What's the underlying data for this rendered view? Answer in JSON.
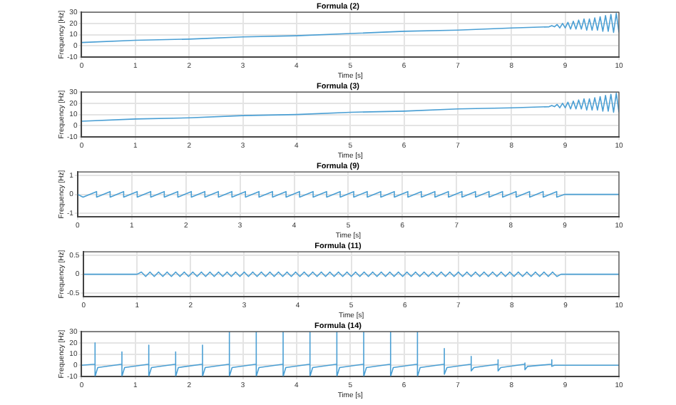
{
  "chart_data": [
    {
      "type": "line",
      "title": "Formula (2)",
      "xlabel": "Time [s]",
      "ylabel": "Frequency [Hz]",
      "xlim": [
        0,
        10
      ],
      "xticks": [
        0,
        1,
        2,
        3,
        4,
        5,
        6,
        7,
        8,
        9,
        10
      ],
      "ylim": [
        -10,
        30
      ],
      "yticks": [
        -10,
        0,
        10,
        20,
        30
      ],
      "grid": true,
      "x": [
        0,
        1,
        2,
        3,
        4,
        5,
        6,
        7,
        8,
        8.7,
        8.75,
        8.8,
        8.85,
        8.9,
        8.95,
        9,
        9.05,
        9.1,
        9.15,
        9.2,
        9.25,
        9.3,
        9.35,
        9.4,
        9.45,
        9.5,
        9.55,
        9.6,
        9.65,
        9.7,
        9.75,
        9.8,
        9.85,
        9.9,
        9.95,
        10
      ],
      "series": [
        {
          "color": "#4a9fd4",
          "values": [
            3,
            5,
            6,
            8,
            9,
            11,
            13,
            14,
            16,
            17,
            18,
            17,
            19,
            16,
            20,
            16,
            21,
            15,
            22,
            15,
            23,
            15,
            24,
            14,
            24,
            14,
            25,
            14,
            26,
            13,
            27,
            13,
            28,
            12,
            29,
            12
          ]
        }
      ]
    },
    {
      "type": "line",
      "title": "Formula (3)",
      "xlabel": "Time [s]",
      "ylabel": "Frequency [Hz]",
      "xlim": [
        0,
        10
      ],
      "xticks": [
        0,
        1,
        2,
        3,
        4,
        5,
        6,
        7,
        8,
        9,
        10
      ],
      "ylim": [
        -10,
        30
      ],
      "yticks": [
        -10,
        0,
        10,
        20,
        30
      ],
      "grid": true,
      "x": [
        0,
        1,
        2,
        3,
        4,
        5,
        6,
        7,
        8,
        8.7,
        8.75,
        8.8,
        8.85,
        8.9,
        8.95,
        9,
        9.05,
        9.1,
        9.15,
        9.2,
        9.25,
        9.3,
        9.35,
        9.4,
        9.45,
        9.5,
        9.55,
        9.6,
        9.65,
        9.7,
        9.75,
        9.8,
        9.85,
        9.9,
        9.95,
        10
      ],
      "series": [
        {
          "color": "#4a9fd4",
          "values": [
            4,
            6,
            7,
            9,
            10,
            12,
            13,
            15,
            16,
            17,
            18,
            17,
            19,
            16,
            20,
            16,
            21,
            15,
            22,
            15,
            23,
            15,
            24,
            14,
            24,
            14,
            25,
            14,
            26,
            13,
            27,
            13,
            28,
            12,
            29,
            12
          ]
        }
      ]
    },
    {
      "type": "line",
      "title": "Formula (9)",
      "xlabel": "Time [s]",
      "ylabel": "Frequency [Hz]",
      "xlim": [
        0,
        10
      ],
      "xticks": [
        0,
        1,
        2,
        3,
        4,
        5,
        6,
        7,
        8,
        9,
        10
      ],
      "ylim": [
        -1.2,
        1.2
      ],
      "yticks": [
        -1,
        0,
        1
      ],
      "grid": true,
      "x": [
        0,
        0.1,
        0.35,
        0.35,
        0.6,
        0.6,
        0.85,
        0.85,
        1.1,
        1.1,
        1.35,
        1.35,
        1.6,
        1.6,
        1.85,
        1.85,
        2.1,
        2.1,
        2.35,
        2.35,
        2.6,
        2.6,
        2.85,
        2.85,
        3.1,
        3.1,
        3.35,
        3.35,
        3.6,
        3.6,
        3.85,
        3.85,
        4.1,
        4.1,
        4.35,
        4.35,
        4.6,
        4.6,
        4.85,
        4.85,
        5.1,
        5.1,
        5.35,
        5.35,
        5.6,
        5.6,
        5.85,
        5.85,
        6.1,
        6.1,
        6.35,
        6.35,
        6.6,
        6.6,
        6.85,
        6.85,
        7.1,
        7.1,
        7.35,
        7.35,
        7.6,
        7.6,
        7.85,
        7.85,
        8.1,
        8.1,
        8.35,
        8.35,
        8.6,
        8.6,
        8.85,
        8.85,
        9,
        10
      ],
      "series": [
        {
          "color": "#4a9fd4",
          "values": [
            0,
            -0.15,
            0.15,
            -0.15,
            0.15,
            -0.15,
            0.15,
            -0.15,
            0.15,
            -0.15,
            0.15,
            -0.15,
            0.15,
            -0.15,
            0.15,
            -0.15,
            0.15,
            -0.15,
            0.15,
            -0.15,
            0.15,
            -0.15,
            0.15,
            -0.15,
            0.15,
            -0.15,
            0.15,
            -0.15,
            0.15,
            -0.15,
            0.15,
            -0.15,
            0.15,
            -0.15,
            0.15,
            -0.15,
            0.15,
            -0.15,
            0.15,
            -0.15,
            0.15,
            -0.15,
            0.15,
            -0.15,
            0.15,
            -0.15,
            0.15,
            -0.15,
            0.15,
            -0.15,
            0.15,
            -0.15,
            0.15,
            -0.15,
            0.15,
            -0.15,
            0.15,
            -0.15,
            0.15,
            -0.15,
            0.15,
            -0.15,
            0.15,
            -0.15,
            0.15,
            -0.15,
            0.15,
            -0.15,
            0.15,
            -0.15,
            0.15,
            -0.15,
            0,
            0
          ]
        }
      ]
    },
    {
      "type": "line",
      "title": "Formula (11)",
      "xlabel": "Time [s]",
      "ylabel": "Frequency [Hz]",
      "xlim": [
        0,
        10
      ],
      "xticks": [
        0,
        1,
        2,
        3,
        4,
        5,
        6,
        7,
        8,
        9,
        10
      ],
      "ylim": [
        -0.6,
        0.6
      ],
      "yticks": [
        -0.5,
        0,
        0.5
      ],
      "grid": true,
      "x": [
        0,
        1,
        1.08,
        1.16,
        1.24,
        1.32,
        1.4,
        1.48,
        1.56,
        1.64,
        1.72,
        1.8,
        1.88,
        1.96,
        2.04,
        2.12,
        2.2,
        2.28,
        2.36,
        2.44,
        2.52,
        2.6,
        2.68,
        2.76,
        2.84,
        2.92,
        3,
        3.08,
        3.16,
        3.24,
        3.32,
        3.4,
        3.48,
        3.56,
        3.64,
        3.72,
        3.8,
        3.88,
        3.96,
        4.04,
        4.12,
        4.2,
        4.28,
        4.36,
        4.44,
        4.52,
        4.6,
        4.68,
        4.76,
        4.84,
        4.92,
        5,
        5.08,
        5.16,
        5.24,
        5.32,
        5.4,
        5.48,
        5.56,
        5.64,
        5.72,
        5.8,
        5.88,
        5.96,
        6.04,
        6.12,
        6.2,
        6.28,
        6.36,
        6.44,
        6.52,
        6.6,
        6.68,
        6.76,
        6.84,
        6.92,
        7,
        7.08,
        7.16,
        7.24,
        7.32,
        7.4,
        7.48,
        7.56,
        7.64,
        7.72,
        7.8,
        7.88,
        7.96,
        8.04,
        8.12,
        8.2,
        8.28,
        8.36,
        8.44,
        8.52,
        8.6,
        8.68,
        8.76,
        8.84,
        8.92,
        9,
        10
      ],
      "series": [
        {
          "color": "#4a9fd4",
          "values": [
            0,
            0,
            0.06,
            -0.06,
            0.06,
            -0.06,
            0.06,
            -0.06,
            0.06,
            -0.06,
            0.06,
            -0.06,
            0.06,
            -0.06,
            0.06,
            -0.06,
            0.06,
            -0.06,
            0.06,
            -0.06,
            0.06,
            -0.06,
            0.06,
            -0.06,
            0.06,
            -0.06,
            0.06,
            -0.06,
            0.06,
            -0.06,
            0.06,
            -0.06,
            0.06,
            -0.06,
            0.06,
            -0.06,
            0.06,
            -0.06,
            0.06,
            -0.06,
            0.06,
            -0.06,
            0.06,
            -0.06,
            0.06,
            -0.06,
            0.06,
            -0.06,
            0.06,
            -0.06,
            0.06,
            -0.06,
            0.06,
            -0.06,
            0.06,
            -0.06,
            0.06,
            -0.06,
            0.06,
            -0.06,
            0.06,
            -0.06,
            0.06,
            -0.06,
            0.06,
            -0.06,
            0.06,
            -0.06,
            0.06,
            -0.06,
            0.06,
            -0.06,
            0.06,
            -0.06,
            0.06,
            -0.06,
            0.06,
            -0.06,
            0.06,
            -0.06,
            0.06,
            -0.06,
            0.06,
            -0.06,
            0.06,
            -0.06,
            0.06,
            -0.06,
            0.06,
            -0.06,
            0.06,
            -0.06,
            0.06,
            -0.06,
            0.06,
            -0.06,
            0.06,
            -0.06,
            0.06,
            -0.06,
            0,
            0,
            0
          ]
        }
      ]
    },
    {
      "type": "line",
      "title": "Formula (14)",
      "xlabel": "Time [s]",
      "ylabel": "Frequency [Hz]",
      "xlim": [
        0,
        10
      ],
      "xticks": [
        0,
        1,
        2,
        3,
        4,
        5,
        6,
        7,
        8,
        9,
        10
      ],
      "ylim": [
        -10,
        30
      ],
      "yticks": [
        -10,
        0,
        10,
        20,
        30
      ],
      "grid": true,
      "x": [
        0,
        0.25,
        0.25,
        0.25,
        0.3,
        0.75,
        0.75,
        0.75,
        0.8,
        1.25,
        1.25,
        1.25,
        1.3,
        1.75,
        1.75,
        1.75,
        1.8,
        2.25,
        2.25,
        2.25,
        2.3,
        2.75,
        2.75,
        2.75,
        2.8,
        3.25,
        3.25,
        3.25,
        3.3,
        3.75,
        3.75,
        3.75,
        3.8,
        4.25,
        4.25,
        4.25,
        4.3,
        4.75,
        4.75,
        4.75,
        4.8,
        5.25,
        5.25,
        5.25,
        5.3,
        5.75,
        5.75,
        5.75,
        5.8,
        6.25,
        6.25,
        6.25,
        6.3,
        6.75,
        6.75,
        6.75,
        6.8,
        7.25,
        7.25,
        7.25,
        7.3,
        7.75,
        7.75,
        7.75,
        7.8,
        8.25,
        8.25,
        8.25,
        8.3,
        8.75,
        8.75,
        8.75,
        8.8,
        10
      ],
      "series": [
        {
          "color": "#4a9fd4",
          "values": [
            0,
            1,
            20,
            -10,
            -2,
            1,
            12,
            -10,
            -2,
            1,
            18,
            -10,
            -2,
            1,
            12,
            -10,
            -2,
            1,
            18,
            -10,
            -2,
            1,
            30,
            -10,
            -2,
            1,
            30,
            -10,
            -2,
            1,
            30,
            -10,
            -2,
            1,
            30,
            -10,
            -2,
            1,
            30,
            -10,
            -2,
            1,
            30,
            -10,
            -2,
            1,
            30,
            -10,
            -2,
            1,
            30,
            -10,
            -2,
            1,
            15,
            -8,
            -2,
            1,
            8,
            -5,
            -2,
            1,
            5,
            -5,
            -2,
            1,
            2,
            -4,
            -1,
            1,
            5,
            -1,
            0,
            0
          ]
        }
      ]
    }
  ]
}
